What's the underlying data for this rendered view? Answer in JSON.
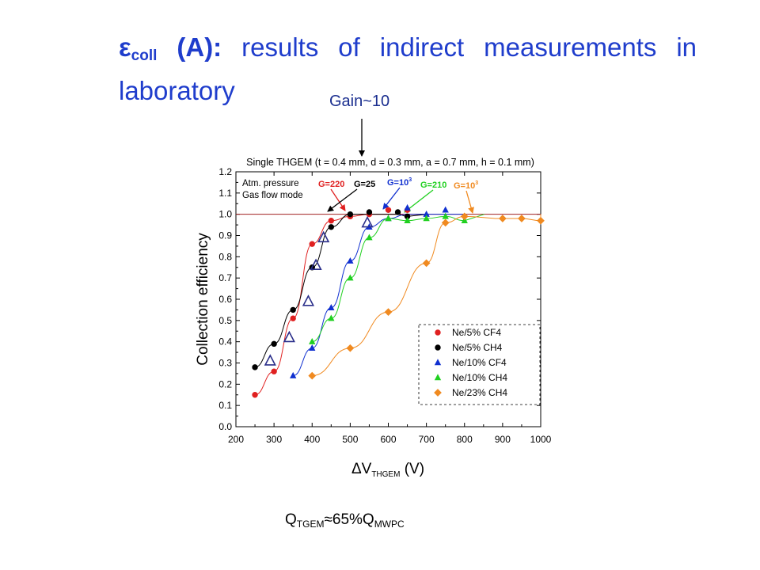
{
  "title": {
    "symbol": "ε",
    "symbol_sub": "coll",
    "paren": "(A):",
    "text": "results of indirect measurements in laboratory"
  },
  "gain_label": "Gain~10",
  "footer": {
    "q1": "Q",
    "q1_sub": "TGEM",
    "mid": "≈65%Q",
    "q2_sub": "MWPC"
  },
  "chart_data": {
    "type": "scatter",
    "title": "Single THGEM (t = 0.4 mm, d = 0.3 mm, a = 0.7 mm, h = 0.1 mm)",
    "xlabel": "ΔV",
    "xlabel_sub": "THGEM",
    "xlabel_unit": "(V)",
    "ylabel": "Collection efficiency",
    "xlim": [
      200,
      1000
    ],
    "ylim": [
      0.0,
      1.2
    ],
    "xticks": [
      200,
      300,
      400,
      500,
      600,
      700,
      800,
      900,
      1000
    ],
    "yticks": [
      0.0,
      0.1,
      0.2,
      0.3,
      0.4,
      0.5,
      0.6,
      0.7,
      0.8,
      0.9,
      1.0,
      1.1,
      1.2
    ],
    "reference_line": 1.0,
    "legend_position": "bottom-right",
    "annotations": {
      "conditions": [
        "Atm. pressure",
        "Gas flow mode"
      ],
      "gains": [
        {
          "text": "G=220",
          "color": "#e02020"
        },
        {
          "text": "G=25",
          "color": "#000000"
        },
        {
          "text": "G=10",
          "sup": "3",
          "color": "#1030d0"
        },
        {
          "text": "G=210",
          "color": "#20d020"
        },
        {
          "text": "G=10",
          "sup": "3",
          "color": "#f08a20"
        }
      ]
    },
    "series": [
      {
        "name": "Ne/5% CF4",
        "marker": "circle",
        "color": "#e02020",
        "x": [
          250,
          300,
          350,
          400,
          450,
          500,
          550,
          600,
          650
        ],
        "y": [
          0.15,
          0.26,
          0.51,
          0.86,
          0.97,
          0.99,
          1.0,
          1.02,
          1.02
        ]
      },
      {
        "name": "Ne/5% CH4",
        "marker": "circle",
        "color": "#000000",
        "x": [
          250,
          300,
          350,
          400,
          450,
          500,
          550,
          625,
          650
        ],
        "y": [
          0.28,
          0.39,
          0.55,
          0.75,
          0.94,
          1.0,
          1.01,
          1.01,
          0.99
        ]
      },
      {
        "name": "Ne/10% CF4",
        "marker": "triangle",
        "color": "#1030d0",
        "x": [
          350,
          400,
          450,
          500,
          550,
          600,
          650,
          700,
          750
        ],
        "y": [
          0.24,
          0.37,
          0.56,
          0.78,
          0.94,
          0.98,
          1.03,
          1.0,
          1.02
        ]
      },
      {
        "name": "Ne/10% CH4",
        "marker": "triangle",
        "color": "#20d020",
        "x": [
          400,
          450,
          500,
          550,
          600,
          650,
          700,
          750,
          800
        ],
        "y": [
          0.4,
          0.51,
          0.7,
          0.89,
          0.98,
          0.97,
          0.98,
          0.99,
          0.97
        ]
      },
      {
        "name": "Ne/23% CH4",
        "marker": "diamond",
        "color": "#f08a20",
        "x": [
          400,
          500,
          600,
          700,
          750,
          800,
          900,
          950,
          1000
        ],
        "y": [
          0.24,
          0.37,
          0.54,
          0.77,
          0.96,
          0.99,
          0.98,
          0.98,
          0.97
        ]
      }
    ],
    "hollow_triangles": {
      "color": "#2a2e8a",
      "x": [
        290,
        340,
        390,
        410,
        430,
        545
      ],
      "y": [
        0.31,
        0.42,
        0.59,
        0.76,
        0.89,
        0.96
      ]
    }
  }
}
